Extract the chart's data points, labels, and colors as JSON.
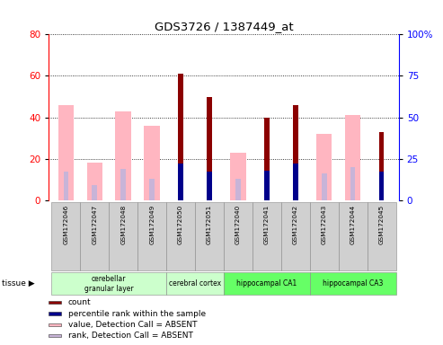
{
  "title": "GDS3726 / 1387449_at",
  "sample_labels": [
    "GSM172046",
    "GSM172047",
    "GSM172048",
    "GSM172049",
    "GSM172050",
    "GSM172051",
    "GSM172040",
    "GSM172041",
    "GSM172042",
    "GSM172043",
    "GSM172044",
    "GSM172045"
  ],
  "count_values": [
    0,
    0,
    0,
    0,
    61,
    50,
    0,
    40,
    46,
    0,
    0,
    33
  ],
  "rank_values": [
    0,
    0,
    0,
    0,
    22,
    17,
    0,
    18,
    22,
    0,
    0,
    17
  ],
  "absent_value_values": [
    46,
    18,
    43,
    36,
    0,
    0,
    23,
    0,
    0,
    32,
    41,
    0
  ],
  "absent_rank_values": [
    17,
    9,
    19,
    13,
    0,
    15,
    13,
    0,
    16,
    16,
    20,
    0
  ],
  "tissue_defs": [
    {
      "label": "cerebellar\ngranular layer",
      "start": 0,
      "end": 4,
      "color": "#ccffcc"
    },
    {
      "label": "cerebral cortex",
      "start": 4,
      "end": 6,
      "color": "#ccffcc"
    },
    {
      "label": "hippocampal CA1",
      "start": 6,
      "end": 9,
      "color": "#66ff66"
    },
    {
      "label": "hippocampal CA3",
      "start": 9,
      "end": 12,
      "color": "#66ff66"
    }
  ],
  "left_ylim": [
    0,
    80
  ],
  "right_ylim": [
    0,
    100
  ],
  "left_yticks": [
    0,
    20,
    40,
    60,
    80
  ],
  "right_yticks": [
    0,
    25,
    50,
    75,
    100
  ],
  "right_yticklabels": [
    "0",
    "25",
    "50",
    "75",
    "100%"
  ],
  "color_count": "#8B0000",
  "color_rank": "#00008B",
  "color_absent_value": "#FFB6C1",
  "color_absent_rank": "#C8B4D8",
  "wide_bar_width": 0.55,
  "narrow_bar_width": 0.18,
  "legend_items": [
    {
      "color": "#8B0000",
      "label": "count"
    },
    {
      "color": "#00008B",
      "label": "percentile rank within the sample"
    },
    {
      "color": "#FFB6C1",
      "label": "value, Detection Call = ABSENT"
    },
    {
      "color": "#C8B4D8",
      "label": "rank, Detection Call = ABSENT"
    }
  ]
}
